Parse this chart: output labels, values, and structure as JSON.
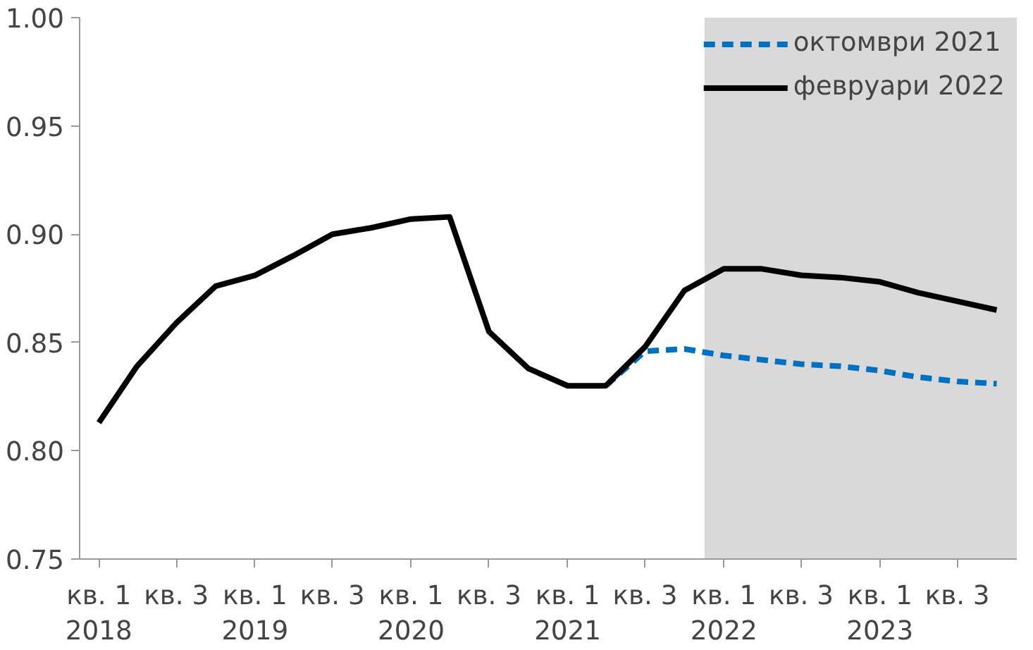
{
  "chart_data": {
    "type": "line",
    "x": [
      "2018-02-15",
      "2018-05-15",
      "2018-08-15",
      "2018-11-15",
      "2019-02-15",
      "2019-05-15",
      "2019-08-15",
      "2019-11-15",
      "2020-02-15",
      "2020-05-15",
      "2020-08-15",
      "2020-11-15",
      "2021-02-15",
      "2021-05-15",
      "2021-08-15",
      "2021-11-15",
      "2022-02-15",
      "2022-05-15",
      "2022-08-15",
      "2022-11-15",
      "2023-02-15",
      "2023-05-15",
      "2023-08-15",
      "2023-11-15"
    ],
    "series": [
      {
        "name": "октомври 2021",
        "color": "#0070c0",
        "line_style": "dashed",
        "values": [
          null,
          null,
          null,
          null,
          null,
          null,
          null,
          null,
          null,
          null,
          null,
          null,
          null,
          0.83,
          0.846,
          0.847,
          0.844,
          0.842,
          0.84,
          0.839,
          0.837,
          0.834,
          0.832,
          0.831
        ]
      },
      {
        "name": "февруари 2022",
        "color": "#000000",
        "line_style": "solid",
        "values": [
          0.813,
          0.839,
          0.859,
          0.876,
          0.881,
          0.89,
          0.9,
          0.903,
          0.907,
          0.908,
          0.855,
          0.838,
          0.83,
          0.83,
          0.848,
          0.874,
          0.884,
          0.884,
          0.881,
          0.88,
          0.878,
          0.873,
          0.869,
          0.865
        ]
      }
    ],
    "xlim": [
      "2018-01-01",
      "2024-01-01"
    ],
    "xticks": [
      {
        "value": "2018-02-15",
        "label": "кв. 1\n2018"
      },
      {
        "value": "2018-08-15",
        "label": "кв. 3"
      },
      {
        "value": "2019-02-15",
        "label": "кв. 1\n2019"
      },
      {
        "value": "2019-08-15",
        "label": "кв. 3"
      },
      {
        "value": "2020-02-15",
        "label": "кв. 1\n2020"
      },
      {
        "value": "2020-08-15",
        "label": "кв. 3"
      },
      {
        "value": "2021-02-15",
        "label": "кв. 1\n2021"
      },
      {
        "value": "2021-08-15",
        "label": "кв. 3"
      },
      {
        "value": "2022-02-15",
        "label": "кв. 1\n2022"
      },
      {
        "value": "2022-08-15",
        "label": "кв. 3"
      },
      {
        "value": "2023-02-15",
        "label": "кв. 1\n2023"
      },
      {
        "value": "2023-08-15",
        "label": "кв. 3"
      }
    ],
    "ylim": [
      0.75,
      1.0
    ],
    "yticks": [
      0.75,
      {
        "value": 0.8,
        "label": "0.80"
      },
      0.85,
      {
        "value": 0.9,
        "label": "0.90"
      },
      0.95,
      {
        "value": 1.0,
        "label": "1.00"
      }
    ],
    "bands": [
      {
        "axis": "x",
        "from": "2022-01-01",
        "to": "2024-01-01",
        "color": "#d9d9d9"
      }
    ],
    "grid": false,
    "legend": "top right"
  }
}
